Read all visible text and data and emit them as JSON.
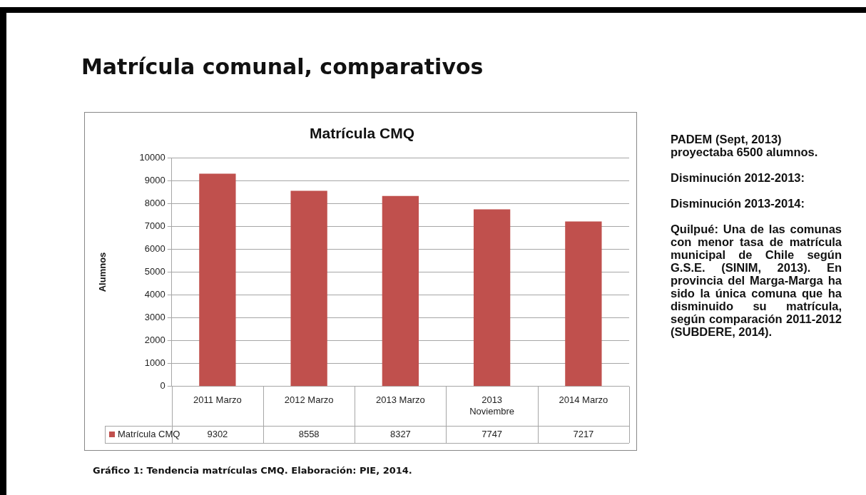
{
  "chart_data": {
    "type": "bar",
    "title": "Matrícula comunal, comparativos",
    "subtitle": "Matrícula CMQ",
    "ylabel": "Alumnos",
    "categories": [
      "2011 Marzo",
      "2012 Marzo",
      "2013 Marzo",
      "2013 Noviembre",
      "2014 Marzo"
    ],
    "series": [
      {
        "name": "Matrícula CMQ",
        "color": "#c0504d",
        "values": [
          9302,
          8558,
          8327,
          7747,
          7217
        ]
      }
    ],
    "ylim": [
      0,
      10000
    ],
    "yticks": [
      0,
      1000,
      2000,
      3000,
      4000,
      5000,
      6000,
      7000,
      8000,
      9000,
      10000
    ],
    "grid": "y",
    "legend": "bottom",
    "data_labels": true,
    "annotations": [
      "PADEM (Sept, 2013) proyectaba 6500 alumnos.",
      "Disminución 2012-2013:",
      "Disminución 2013-2014:",
      "Quilpué: Una de las comunas con menor tasa de matrícula municipal de Chile según G.S.E. (SINIM, 2013). En provincia del Marga-Marga ha sido la única comuna que ha disminuido su matrícula, según comparación 2011-2012 (SUBDERE, 2014).",
      "Gráfico 1: Tendencia matrículas CMQ. Elaboración: PIE, 2014."
    ]
  }
}
